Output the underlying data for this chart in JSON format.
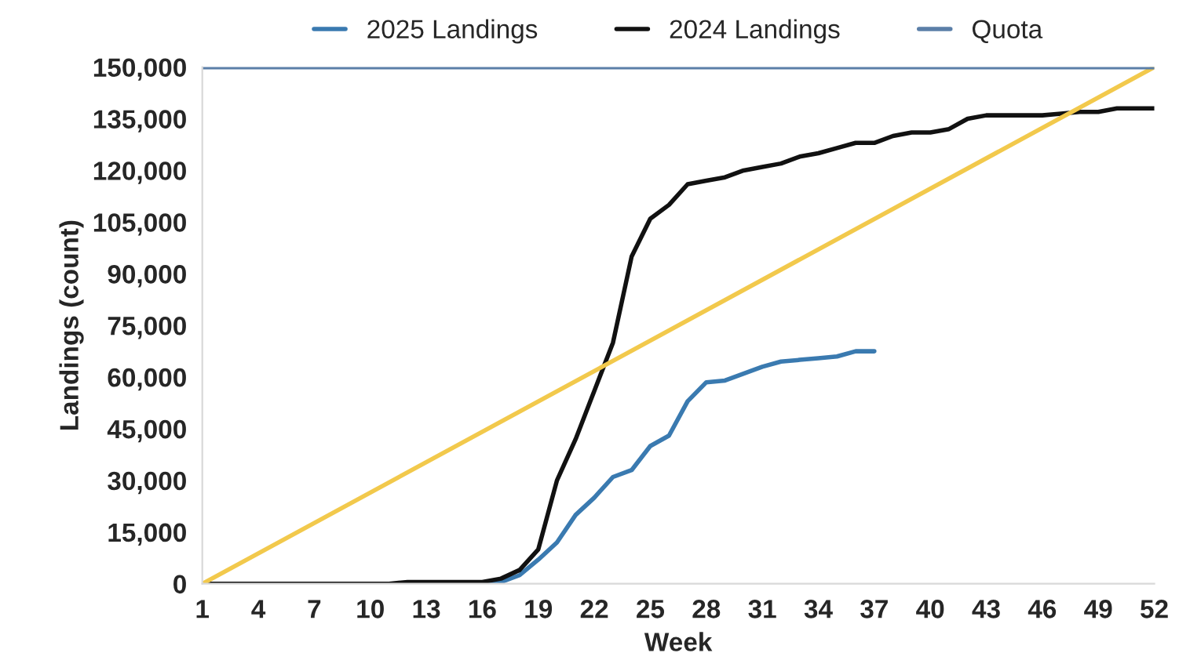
{
  "chart_data": {
    "type": "line",
    "xlabel": "Week",
    "ylabel": "Landings (count)",
    "x": [
      1,
      2,
      3,
      4,
      5,
      6,
      7,
      8,
      9,
      10,
      11,
      12,
      13,
      14,
      15,
      16,
      17,
      18,
      19,
      20,
      21,
      22,
      23,
      24,
      25,
      26,
      27,
      28,
      29,
      30,
      31,
      32,
      33,
      34,
      35,
      36,
      37,
      38,
      39,
      40,
      41,
      42,
      43,
      44,
      45,
      46,
      47,
      48,
      49,
      50,
      51,
      52
    ],
    "series": [
      {
        "name": "2025 Landings",
        "color": "#3a7ab0",
        "values": [
          null,
          null,
          null,
          null,
          null,
          null,
          null,
          null,
          null,
          null,
          null,
          null,
          null,
          null,
          0,
          0,
          500,
          2500,
          7000,
          12000,
          20000,
          25000,
          31000,
          33000,
          40000,
          43000,
          53000,
          58500,
          59000,
          61000,
          63000,
          64500,
          65000,
          65500,
          66000,
          67500,
          67500,
          null,
          null,
          null,
          null,
          null,
          null,
          null,
          null,
          null,
          null,
          null,
          null,
          null,
          null,
          null
        ]
      },
      {
        "name": "2024 Landings",
        "color": "#111111",
        "values": [
          0,
          0,
          0,
          0,
          0,
          0,
          0,
          0,
          0,
          0,
          0,
          500,
          500,
          500,
          500,
          500,
          1500,
          4000,
          10000,
          30000,
          42000,
          56000,
          70000,
          95000,
          106000,
          110000,
          116000,
          117000,
          118000,
          120000,
          121000,
          122000,
          124000,
          125000,
          126500,
          128000,
          128000,
          130000,
          131000,
          131000,
          132000,
          135000,
          136000,
          136000,
          136000,
          136000,
          136500,
          137000,
          137000,
          138000,
          138000,
          138000
        ]
      },
      {
        "color": "#f2c94c",
        "x": [
          1,
          52
        ],
        "values": [
          0,
          150000
        ]
      }
    ],
    "xlim": [
      1,
      52
    ],
    "xticks": [
      1,
      4,
      7,
      10,
      13,
      16,
      19,
      22,
      25,
      28,
      31,
      34,
      37,
      40,
      43,
      46,
      49,
      52
    ],
    "ylim": [
      0,
      150000
    ],
    "yticks": [
      {
        "value": 0,
        "label": "0"
      },
      {
        "value": 15000,
        "label": "15,000"
      },
      {
        "value": 30000,
        "label": "30,000"
      },
      {
        "value": 45000,
        "label": "45,000"
      },
      {
        "value": 60000,
        "label": "60,000"
      },
      {
        "value": 75000,
        "label": "75,000"
      },
      {
        "value": 90000,
        "label": "90,000"
      },
      {
        "value": 105000,
        "label": "105,000"
      },
      {
        "value": 120000,
        "label": "120,000"
      },
      {
        "value": 135000,
        "label": "135,000"
      },
      {
        "value": 150000,
        "label": "150,000"
      }
    ],
    "ref_lines": [
      {
        "axis": "y",
        "value": 150000,
        "label": "Quota",
        "color": "#5b7fa8"
      }
    ],
    "legend": "top",
    "grid": false
  }
}
